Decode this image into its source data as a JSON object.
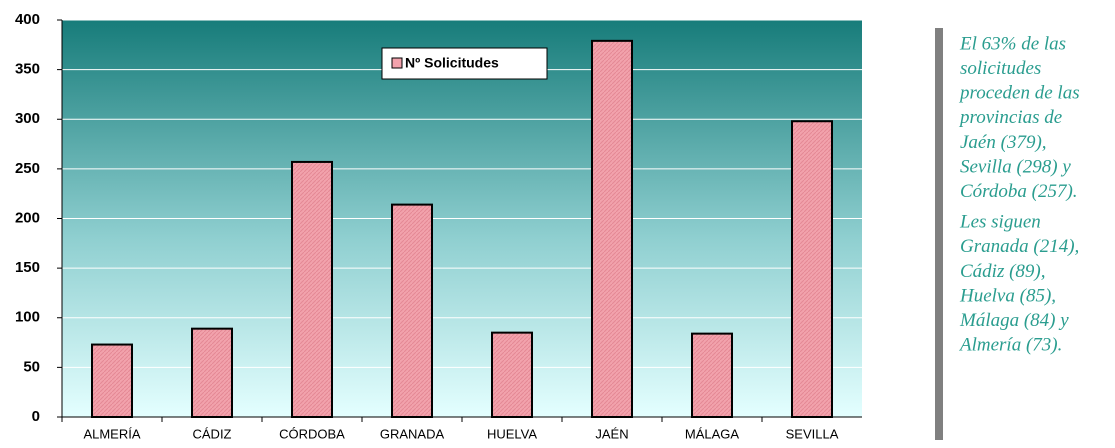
{
  "chart_data": {
    "type": "bar",
    "categories": [
      "ALMERÍA",
      "CÁDIZ",
      "CÓRDOBA",
      "GRANADA",
      "HUELVA",
      "JAÉN",
      "MÁLAGA",
      "SEVILLA"
    ],
    "series": [
      {
        "name": "Nº Solicitudes",
        "color": "#f2a2ac",
        "values": [
          73,
          89,
          257,
          214,
          85,
          379,
          84,
          298
        ]
      }
    ],
    "ylim": [
      0,
      400
    ],
    "yticks": [
      0,
      50,
      100,
      150,
      200,
      250,
      300,
      350,
      400
    ],
    "grid": true,
    "legend": "top"
  },
  "sidebar": {
    "paragraphs": [
      [
        "El 63% de las",
        "solicitudes",
        "proceden de las",
        "provincias de",
        "Jaén (379),",
        "Sevilla (298) y",
        "Córdoba (257)."
      ],
      [
        "Les siguen",
        "Granada (214),",
        "Cádiz (89),",
        "Huelva (85),",
        "Málaga (84) y",
        "Almería (73)."
      ]
    ]
  }
}
